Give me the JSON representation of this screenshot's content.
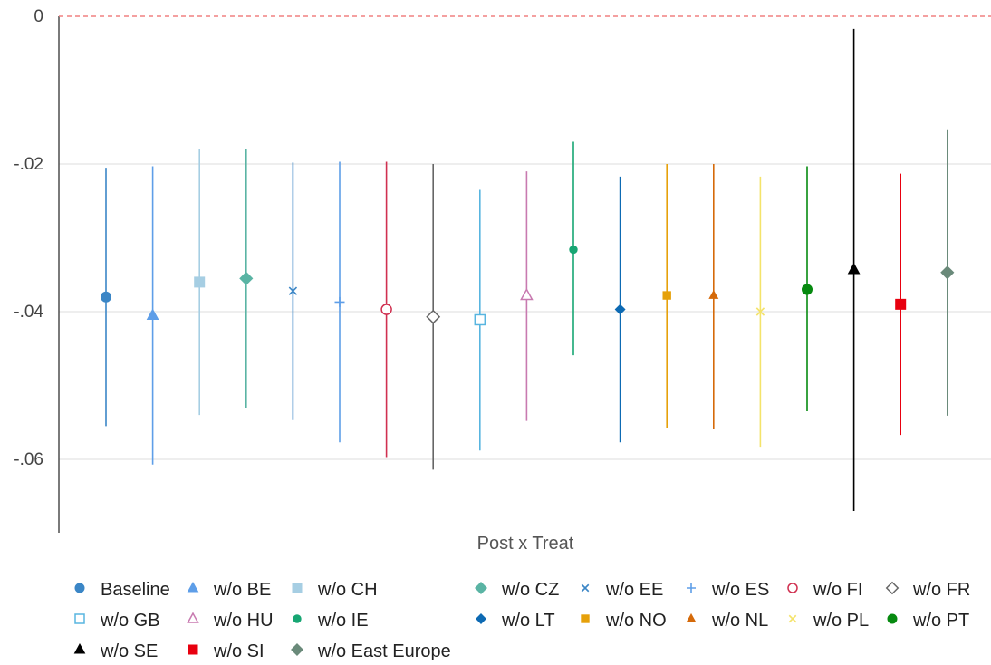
{
  "chart_data": {
    "type": "scatter",
    "subtype": "coefficient-plot",
    "title": "",
    "xlabel": "Post x Treat",
    "ylabel": "",
    "ylim": [
      -0.07,
      0
    ],
    "yticks": [
      0,
      -0.02,
      -0.04,
      -0.06
    ],
    "ytick_labels": [
      "0",
      "-.02",
      "-.04",
      "-.06"
    ],
    "reference_line": {
      "y": 0,
      "color": "#f08080",
      "style": "dashed"
    },
    "grid": true,
    "legend_position": "bottom",
    "series": [
      {
        "name": "Baseline",
        "estimate": -0.038,
        "ci_low": -0.0555,
        "ci_high": -0.0205,
        "color": "#3b86c6",
        "marker": "circle",
        "filled": true
      },
      {
        "name": "w/o BE",
        "estimate": -0.0405,
        "ci_low": -0.0607,
        "ci_high": -0.0203,
        "color": "#5e9ee8",
        "marker": "triangle",
        "filled": true
      },
      {
        "name": "w/o CH",
        "estimate": -0.036,
        "ci_low": -0.054,
        "ci_high": -0.018,
        "color": "#a6cee3",
        "marker": "square",
        "filled": true
      },
      {
        "name": "w/o CZ",
        "estimate": -0.0355,
        "ci_low": -0.053,
        "ci_high": -0.018,
        "color": "#5ab4a4",
        "marker": "diamond",
        "filled": true
      },
      {
        "name": "w/o EE",
        "estimate": -0.0372,
        "ci_low": -0.0547,
        "ci_high": -0.0198,
        "color": "#3b86c6",
        "marker": "x",
        "filled": true
      },
      {
        "name": "w/o ES",
        "estimate": -0.0387,
        "ci_low": -0.0577,
        "ci_high": -0.0197,
        "color": "#5e9ee8",
        "marker": "plus",
        "filled": true
      },
      {
        "name": "w/o FI",
        "estimate": -0.0397,
        "ci_low": -0.0597,
        "ci_high": -0.0197,
        "color": "#d03050",
        "marker": "circle",
        "filled": false
      },
      {
        "name": "w/o FR",
        "estimate": -0.0407,
        "ci_low": -0.0614,
        "ci_high": -0.02,
        "color": "#666666",
        "marker": "diamond",
        "filled": false
      },
      {
        "name": "w/o GB",
        "estimate": -0.0411,
        "ci_low": -0.0588,
        "ci_high": -0.0235,
        "color": "#58b5e0",
        "marker": "square",
        "filled": false
      },
      {
        "name": "w/o HU",
        "estimate": -0.0378,
        "ci_low": -0.0548,
        "ci_high": -0.021,
        "color": "#c87ab0",
        "marker": "triangle",
        "filled": false
      },
      {
        "name": "w/o IE",
        "estimate": -0.0316,
        "ci_low": -0.0459,
        "ci_high": -0.017,
        "color": "#17a673",
        "marker": "circle",
        "filled": true,
        "size": "small"
      },
      {
        "name": "w/o LT",
        "estimate": -0.0397,
        "ci_low": -0.0577,
        "ci_high": -0.0217,
        "color": "#0d6ab3",
        "marker": "diamond",
        "filled": true,
        "size": "small"
      },
      {
        "name": "w/o NO",
        "estimate": -0.0378,
        "ci_low": -0.0557,
        "ci_high": -0.02,
        "color": "#e6a10a",
        "marker": "square",
        "filled": true,
        "size": "small"
      },
      {
        "name": "w/o NL",
        "estimate": -0.0378,
        "ci_low": -0.0559,
        "ci_high": -0.02,
        "color": "#d56a0a",
        "marker": "triangle",
        "filled": true,
        "size": "small"
      },
      {
        "name": "w/o PL",
        "estimate": -0.04,
        "ci_low": -0.0583,
        "ci_high": -0.0217,
        "color": "#f4e36a",
        "marker": "x",
        "filled": true
      },
      {
        "name": "w/o PT",
        "estimate": -0.037,
        "ci_low": -0.0535,
        "ci_high": -0.0203,
        "color": "#078a10",
        "marker": "circle",
        "filled": true
      },
      {
        "name": "w/o SE",
        "estimate": -0.0343,
        "ci_low": -0.067,
        "ci_high": -0.0017,
        "color": "#000000",
        "marker": "triangle",
        "filled": true
      },
      {
        "name": "w/o SI",
        "estimate": -0.039,
        "ci_low": -0.0567,
        "ci_high": -0.0213,
        "color": "#e8000f",
        "marker": "square",
        "filled": true
      },
      {
        "name": "w/o East Europe",
        "estimate": -0.0347,
        "ci_low": -0.0541,
        "ci_high": -0.0153,
        "color": "#6a8a7a",
        "marker": "diamond",
        "filled": true
      }
    ]
  }
}
